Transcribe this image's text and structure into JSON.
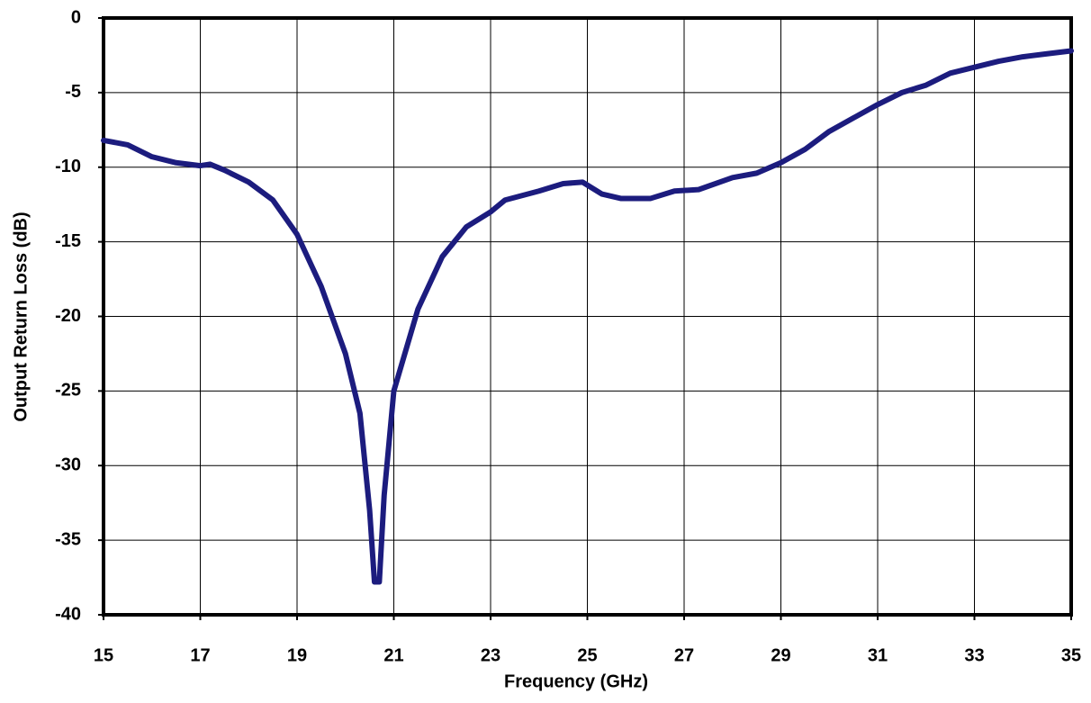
{
  "chart_data": {
    "type": "line",
    "x_label": "Frequency (GHz)",
    "y_label": "Output Return Loss (dB)",
    "x": [
      15,
      15.5,
      16,
      16.5,
      17,
      17.2,
      17.5,
      18,
      18.5,
      19,
      19.5,
      20,
      20.3,
      20.5,
      20.6,
      20.7,
      20.8,
      21,
      21.5,
      22,
      22.5,
      23,
      23.3,
      24,
      24.5,
      24.9,
      25.3,
      25.7,
      26.3,
      26.8,
      27.3,
      28,
      28.5,
      29,
      29.5,
      30,
      30.5,
      31,
      31.5,
      32,
      32.5,
      33,
      33.5,
      34,
      34.5,
      35
    ],
    "series": [
      {
        "color": "#1c1c7e",
        "values": [
          -8.2,
          -8.5,
          -9.3,
          -9.7,
          -9.9,
          -9.8,
          -10.2,
          -11,
          -12.2,
          -14.5,
          -18,
          -22.5,
          -26.5,
          -33,
          -37.8,
          -37.8,
          -32,
          -25,
          -19.5,
          -16,
          -14,
          -13,
          -12.2,
          -11.6,
          -11.1,
          -11,
          -11.8,
          -12.1,
          -12.1,
          -11.6,
          -11.5,
          -10.7,
          -10.4,
          -9.7,
          -8.8,
          -7.6,
          -6.7,
          -5.8,
          -5,
          -4.5,
          -3.7,
          -3.3,
          -2.9,
          -2.6,
          -2.4,
          -2.2
        ]
      }
    ],
    "xlim": [
      15,
      35
    ],
    "xticks": [
      15,
      17,
      19,
      21,
      23,
      25,
      27,
      29,
      31,
      33,
      35
    ],
    "ylim": [
      -40,
      0
    ],
    "yticks": [
      0,
      -5,
      -10,
      -15,
      -20,
      -25,
      -30,
      -35,
      -40
    ],
    "grid": true
  }
}
